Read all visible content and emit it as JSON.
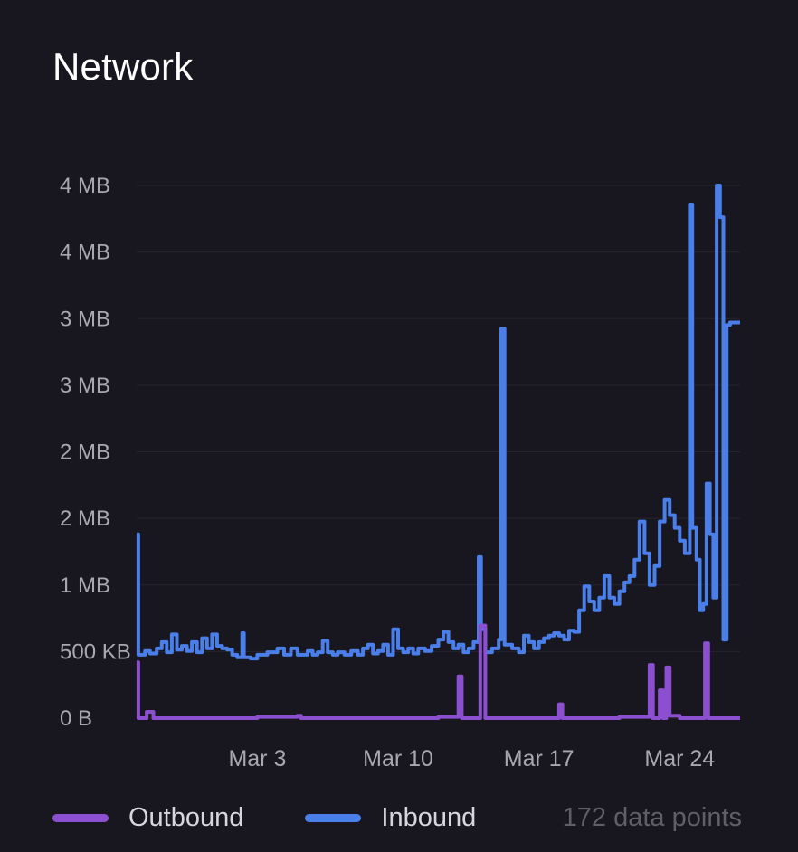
{
  "panel": {
    "title": "Network"
  },
  "legend": {
    "outbound_label": "Outbound",
    "inbound_label": "Inbound",
    "points_text": "172 data points"
  },
  "colors": {
    "background": "#181720",
    "grid": "#25242f",
    "axis_text": "#a9a8b2",
    "inbound": "#4a7ee8",
    "outbound": "#8b4fd0"
  },
  "chart_data": {
    "type": "line",
    "step": true,
    "title": "Network",
    "xlabel": "",
    "ylabel": "",
    "grid": true,
    "legend_position": "bottom-left",
    "x_start": "2024-02-26",
    "x_end": "2024-03-27",
    "x_ticks": [
      {
        "label": "Mar 3",
        "date": "2024-03-03"
      },
      {
        "label": "Mar 10",
        "date": "2024-03-10"
      },
      {
        "label": "Mar 17",
        "date": "2024-03-17"
      },
      {
        "label": "Mar 24",
        "date": "2024-03-24"
      }
    ],
    "y_ticks": [
      "0 B",
      "500 KB",
      "1 MB",
      "2 MB",
      "2 MB",
      "3 MB",
      "3 MB",
      "4 MB",
      "4 MB"
    ],
    "ylim_mb": [
      0,
      4.2
    ],
    "series": [
      {
        "name": "Inbound",
        "points": [
          [
            "2024-02-26T00:00",
            1.45
          ],
          [
            "2024-02-26T02:00",
            0.5
          ],
          [
            "2024-02-26T10:00",
            0.53
          ],
          [
            "2024-02-26T16:00",
            0.51
          ],
          [
            "2024-02-27T00:00",
            0.55
          ],
          [
            "2024-02-27T06:00",
            0.6
          ],
          [
            "2024-02-27T12:00",
            0.52
          ],
          [
            "2024-02-27T18:00",
            0.66
          ],
          [
            "2024-02-28T00:00",
            0.54
          ],
          [
            "2024-02-28T06:00",
            0.57
          ],
          [
            "2024-02-28T12:00",
            0.53
          ],
          [
            "2024-02-28T18:00",
            0.6
          ],
          [
            "2024-02-29T00:00",
            0.52
          ],
          [
            "2024-02-29T06:00",
            0.63
          ],
          [
            "2024-02-29T12:00",
            0.55
          ],
          [
            "2024-02-29T18:00",
            0.66
          ],
          [
            "2024-03-01T00:00",
            0.57
          ],
          [
            "2024-03-01T06:00",
            0.55
          ],
          [
            "2024-03-01T12:00",
            0.54
          ],
          [
            "2024-03-01T18:00",
            0.5
          ],
          [
            "2024-03-02T00:00",
            0.48
          ],
          [
            "2024-03-02T06:00",
            0.67
          ],
          [
            "2024-03-02T08:00",
            0.48
          ],
          [
            "2024-03-02T16:00",
            0.47
          ],
          [
            "2024-03-03T00:00",
            0.5
          ],
          [
            "2024-03-03T12:00",
            0.52
          ],
          [
            "2024-03-04T00:00",
            0.55
          ],
          [
            "2024-03-04T08:00",
            0.5
          ],
          [
            "2024-03-04T16:00",
            0.55
          ],
          [
            "2024-03-05T00:00",
            0.5
          ],
          [
            "2024-03-05T12:00",
            0.53
          ],
          [
            "2024-03-05T18:00",
            0.5
          ],
          [
            "2024-03-06T00:00",
            0.52
          ],
          [
            "2024-03-06T06:00",
            0.61
          ],
          [
            "2024-03-06T12:00",
            0.52
          ],
          [
            "2024-03-06T18:00",
            0.5
          ],
          [
            "2024-03-07T00:00",
            0.52
          ],
          [
            "2024-03-07T08:00",
            0.5
          ],
          [
            "2024-03-07T16:00",
            0.53
          ],
          [
            "2024-03-08T00:00",
            0.5
          ],
          [
            "2024-03-08T06:00",
            0.55
          ],
          [
            "2024-03-08T12:00",
            0.58
          ],
          [
            "2024-03-08T18:00",
            0.51
          ],
          [
            "2024-03-09T00:00",
            0.53
          ],
          [
            "2024-03-09T06:00",
            0.58
          ],
          [
            "2024-03-09T12:00",
            0.5
          ],
          [
            "2024-03-09T18:00",
            0.7
          ],
          [
            "2024-03-10T00:00",
            0.55
          ],
          [
            "2024-03-10T06:00",
            0.52
          ],
          [
            "2024-03-10T12:00",
            0.55
          ],
          [
            "2024-03-10T18:00",
            0.51
          ],
          [
            "2024-03-11T00:00",
            0.55
          ],
          [
            "2024-03-11T08:00",
            0.53
          ],
          [
            "2024-03-11T16:00",
            0.57
          ],
          [
            "2024-03-12T00:00",
            0.62
          ],
          [
            "2024-03-12T06:00",
            0.68
          ],
          [
            "2024-03-12T12:00",
            0.6
          ],
          [
            "2024-03-12T18:00",
            0.55
          ],
          [
            "2024-03-13T00:00",
            0.58
          ],
          [
            "2024-03-13T06:00",
            0.52
          ],
          [
            "2024-03-13T12:00",
            0.55
          ],
          [
            "2024-03-13T18:00",
            0.6
          ],
          [
            "2024-03-14T00:00",
            1.27
          ],
          [
            "2024-03-14T03:00",
            0.7
          ],
          [
            "2024-03-14T08:00",
            0.52
          ],
          [
            "2024-03-14T16:00",
            0.55
          ],
          [
            "2024-03-15T00:00",
            0.62
          ],
          [
            "2024-03-15T03:00",
            3.07
          ],
          [
            "2024-03-15T07:00",
            0.58
          ],
          [
            "2024-03-15T16:00",
            0.55
          ],
          [
            "2024-03-16T00:00",
            0.52
          ],
          [
            "2024-03-16T06:00",
            0.65
          ],
          [
            "2024-03-16T12:00",
            0.6
          ],
          [
            "2024-03-16T18:00",
            0.55
          ],
          [
            "2024-03-17T00:00",
            0.6
          ],
          [
            "2024-03-17T06:00",
            0.63
          ],
          [
            "2024-03-17T12:00",
            0.65
          ],
          [
            "2024-03-17T18:00",
            0.67
          ],
          [
            "2024-03-18T00:00",
            0.65
          ],
          [
            "2024-03-18T06:00",
            0.62
          ],
          [
            "2024-03-18T12:00",
            0.69
          ],
          [
            "2024-03-18T18:00",
            0.68
          ],
          [
            "2024-03-19T00:00",
            0.85
          ],
          [
            "2024-03-19T06:00",
            1.04
          ],
          [
            "2024-03-19T12:00",
            0.92
          ],
          [
            "2024-03-19T18:00",
            0.85
          ],
          [
            "2024-03-20T00:00",
            0.95
          ],
          [
            "2024-03-20T06:00",
            1.12
          ],
          [
            "2024-03-20T12:00",
            0.95
          ],
          [
            "2024-03-20T18:00",
            0.9
          ],
          [
            "2024-03-21T00:00",
            1.0
          ],
          [
            "2024-03-21T06:00",
            1.07
          ],
          [
            "2024-03-21T12:00",
            1.12
          ],
          [
            "2024-03-21T18:00",
            1.25
          ],
          [
            "2024-03-22T00:00",
            1.55
          ],
          [
            "2024-03-22T06:00",
            1.3
          ],
          [
            "2024-03-22T12:00",
            1.05
          ],
          [
            "2024-03-22T18:00",
            1.2
          ],
          [
            "2024-03-23T00:00",
            1.55
          ],
          [
            "2024-03-23T06:00",
            1.72
          ],
          [
            "2024-03-23T12:00",
            1.6
          ],
          [
            "2024-03-23T18:00",
            1.5
          ],
          [
            "2024-03-24T00:00",
            1.4
          ],
          [
            "2024-03-24T06:00",
            1.3
          ],
          [
            "2024-03-24T12:00",
            4.05
          ],
          [
            "2024-03-24T15:00",
            1.5
          ],
          [
            "2024-03-24T20:00",
            1.25
          ],
          [
            "2024-03-25T00:00",
            0.85
          ],
          [
            "2024-03-25T04:00",
            0.9
          ],
          [
            "2024-03-25T08:00",
            1.85
          ],
          [
            "2024-03-25T12:00",
            1.45
          ],
          [
            "2024-03-25T16:00",
            0.95
          ],
          [
            "2024-03-25T20:00",
            4.2
          ],
          [
            "2024-03-26T00:00",
            3.95
          ],
          [
            "2024-03-26T04:00",
            0.62
          ],
          [
            "2024-03-26T08:00",
            3.1
          ],
          [
            "2024-03-26T12:00",
            3.12
          ]
        ]
      },
      {
        "name": "Outbound",
        "points": [
          [
            "2024-02-26T00:00",
            0.44
          ],
          [
            "2024-02-26T02:00",
            0.0
          ],
          [
            "2024-02-26T12:00",
            0.05
          ],
          [
            "2024-02-26T20:00",
            0.0
          ],
          [
            "2024-03-03T00:00",
            0.01
          ],
          [
            "2024-03-05T00:00",
            0.02
          ],
          [
            "2024-03-05T04:00",
            0.0
          ],
          [
            "2024-03-12T00:00",
            0.01
          ],
          [
            "2024-03-13T00:00",
            0.33
          ],
          [
            "2024-03-13T04:00",
            0.0
          ],
          [
            "2024-03-14T02:00",
            0.73
          ],
          [
            "2024-03-14T08:00",
            0.0
          ],
          [
            "2024-03-18T00:00",
            0.11
          ],
          [
            "2024-03-18T04:00",
            0.0
          ],
          [
            "2024-03-21T00:00",
            0.01
          ],
          [
            "2024-03-22T12:00",
            0.42
          ],
          [
            "2024-03-22T16:00",
            0.0
          ],
          [
            "2024-03-23T00:00",
            0.22
          ],
          [
            "2024-03-23T04:00",
            0.0
          ],
          [
            "2024-03-23T08:00",
            0.4
          ],
          [
            "2024-03-23T12:00",
            0.02
          ],
          [
            "2024-03-24T00:00",
            0.0
          ],
          [
            "2024-03-25T06:00",
            0.59
          ],
          [
            "2024-03-25T10:00",
            0.0
          ],
          [
            "2024-03-26T12:00",
            0.0
          ]
        ]
      }
    ]
  }
}
